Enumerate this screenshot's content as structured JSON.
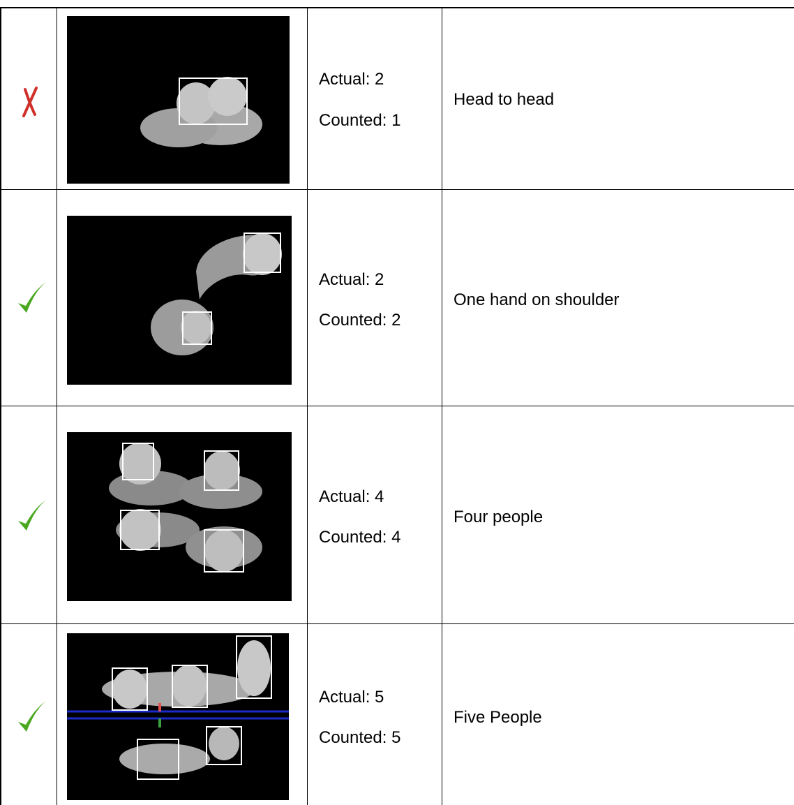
{
  "table": {
    "rows": [
      {
        "actual": "Actual: 2",
        "counted": "Counted: 1",
        "description": "Head to head"
      },
      {
        "actual": "Actual: 2",
        "counted": "Counted: 2",
        "description": "One hand on shoulder"
      },
      {
        "actual": "Actual: 4",
        "counted": "Counted: 4",
        "description": "Four people"
      },
      {
        "actual": "Actual: 5",
        "counted": "Counted: 5",
        "description": "Five People"
      }
    ]
  }
}
